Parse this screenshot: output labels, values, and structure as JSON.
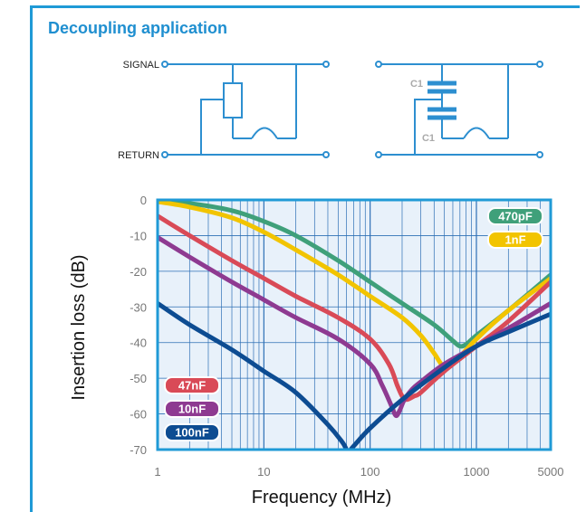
{
  "title": "Decoupling application",
  "schematic": {
    "signal_label": "SIGNAL",
    "return_label": "RETURN",
    "cap_label": "C1"
  },
  "colors": {
    "frame": "#1f9ad6",
    "wire": "#2d8fd0",
    "plot_bg": "#e8f1fa",
    "grid": "#2d6fb5",
    "470pF": "#3fa07a",
    "1nF": "#f2c400",
    "47nF": "#d94a57",
    "10nF": "#8e3a91",
    "100nF": "#0d4c92"
  },
  "chart_data": {
    "type": "line",
    "xlabel": "Frequency (MHz)",
    "ylabel": "Insertion loss (dB)",
    "x_scale": "log",
    "xlim": [
      1,
      5000
    ],
    "ylim": [
      -70,
      0
    ],
    "x_ticks": [
      1,
      10,
      100,
      1000,
      5000
    ],
    "x_tick_labels": [
      "1",
      "10",
      "100",
      "1000",
      "5000"
    ],
    "y_ticks": [
      0,
      -10,
      -20,
      -30,
      -40,
      -50,
      -60,
      -70
    ],
    "y_tick_labels": [
      "0",
      "-10",
      "-20",
      "-30",
      "-40",
      "-50",
      "-60",
      "-70"
    ],
    "grid": true,
    "series": [
      {
        "name": "470pF",
        "color": "#3fa07a",
        "x": [
          1,
          2,
          5,
          10,
          20,
          50,
          100,
          200,
          400,
          600,
          700,
          800,
          1000,
          2000,
          5000
        ],
        "y": [
          -0.5,
          -1,
          -3,
          -6,
          -10,
          -17,
          -23,
          -29,
          -35,
          -39.5,
          -41,
          -40.5,
          -38,
          -31,
          -21
        ]
      },
      {
        "name": "1nF",
        "color": "#f2c400",
        "x": [
          1,
          2,
          5,
          10,
          20,
          50,
          100,
          200,
          300,
          400,
          500,
          600,
          700,
          1000,
          2000,
          5000
        ],
        "y": [
          -0.5,
          -2,
          -5,
          -9,
          -14,
          -21,
          -27,
          -33,
          -38,
          -43,
          -47,
          -46,
          -44,
          -39,
          -31,
          -22
        ]
      },
      {
        "name": "47nF",
        "color": "#d94a57",
        "x": [
          1,
          2,
          5,
          10,
          20,
          50,
          100,
          150,
          180,
          200,
          220,
          260,
          300,
          500,
          1000,
          2000,
          5000
        ],
        "y": [
          -4.5,
          -10,
          -17,
          -22,
          -27,
          -33,
          -39,
          -46,
          -52,
          -55,
          -56,
          -55,
          -54,
          -48,
          -41,
          -34,
          -23
        ]
      },
      {
        "name": "10nF",
        "color": "#8e3a91",
        "x": [
          1,
          2,
          5,
          10,
          20,
          50,
          100,
          130,
          160,
          175,
          190,
          210,
          250,
          300,
          500,
          1000,
          2000,
          5000
        ],
        "y": [
          -10.5,
          -16,
          -23,
          -28,
          -33,
          -39,
          -46,
          -52,
          -58,
          -60.5,
          -59,
          -56,
          -53,
          -51,
          -46,
          -41,
          -36,
          -29
        ]
      },
      {
        "name": "100nF",
        "color": "#0d4c92",
        "x": [
          1,
          2,
          5,
          10,
          20,
          40,
          55,
          62,
          70,
          100,
          200,
          500,
          1000,
          2000,
          5000
        ],
        "y": [
          -29,
          -35,
          -42,
          -48,
          -54,
          -63,
          -68,
          -70.5,
          -69,
          -64,
          -56,
          -47,
          -41,
          -37,
          -32
        ]
      }
    ]
  }
}
